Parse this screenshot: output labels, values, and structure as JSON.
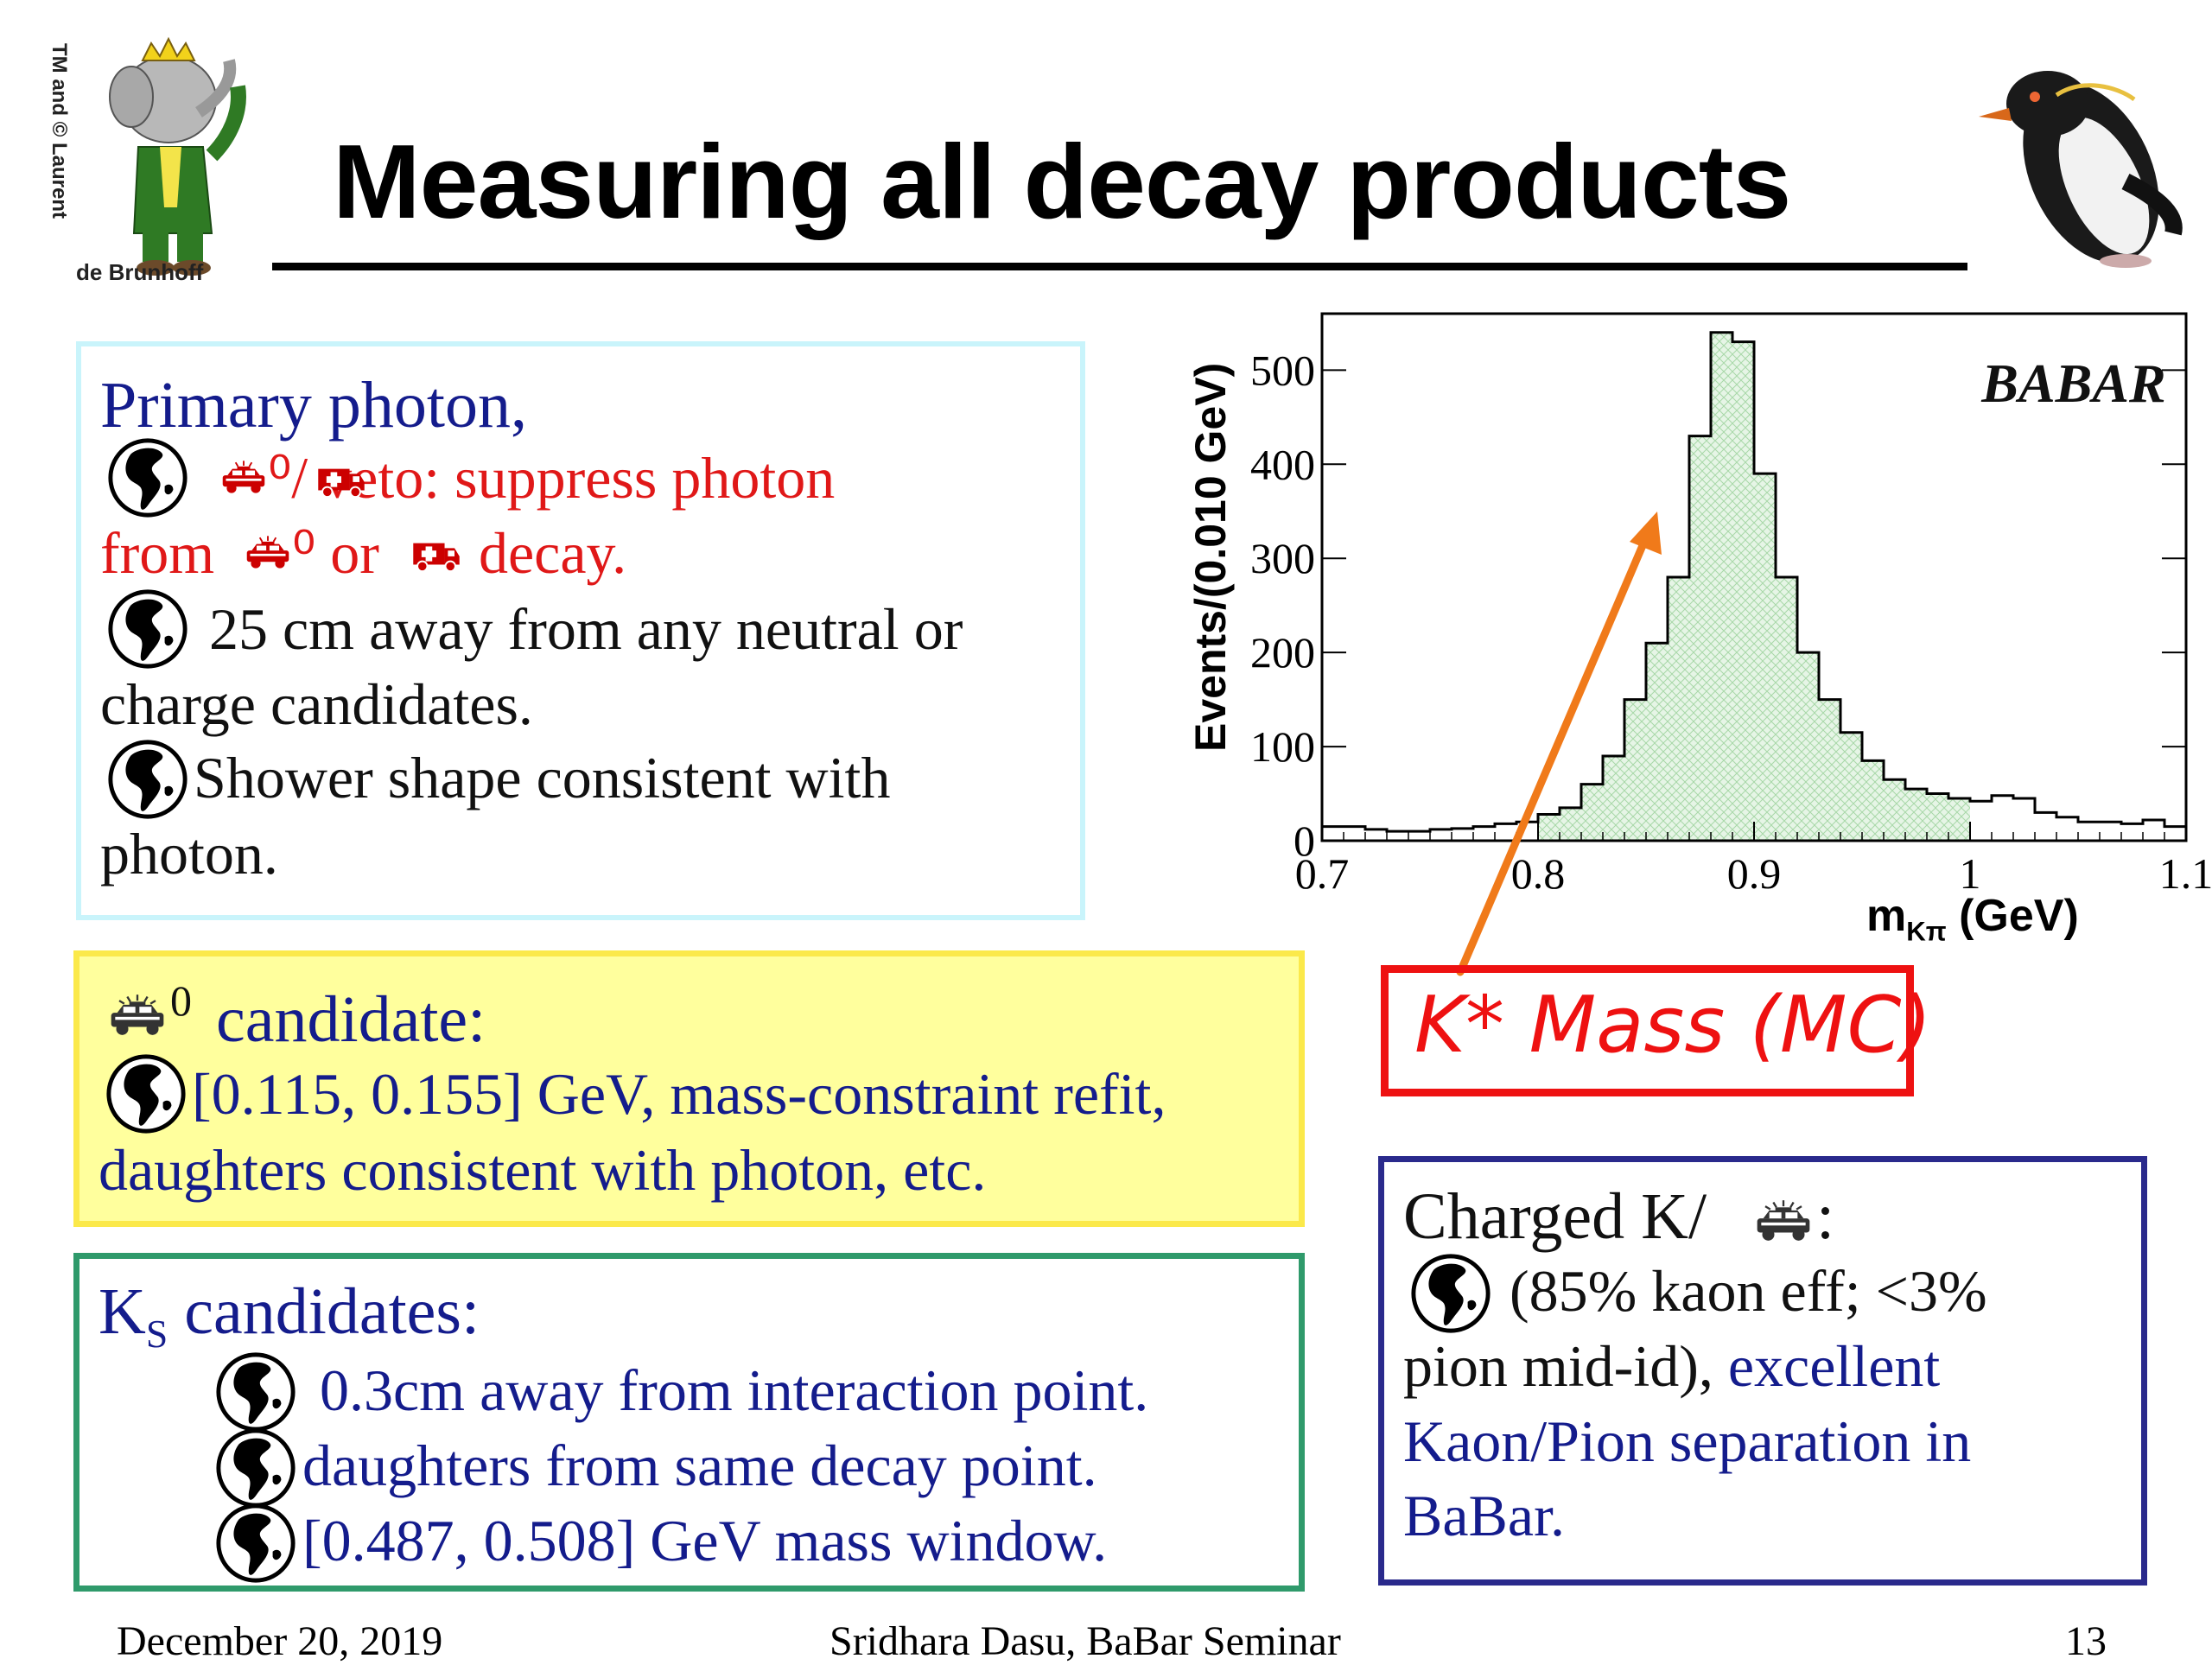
{
  "slide": {
    "title": "Measuring all decay products",
    "logo_text_vertical": "TM and © Laurent",
    "logo_text_bottom": "de Brunhoff"
  },
  "primary_photon": {
    "heading": "Primary photon,",
    "line1": "⁰/   veto: suppress photon",
    "line2a": "from",
    "line2b": "⁰ or",
    "line2c": "decay.",
    "line3": "25 cm away from any neutral or",
    "line4": "charge candidates.",
    "line5": "Shower shape consistent with",
    "line6": "photon."
  },
  "pi0_box": {
    "heading_sup": "0",
    "heading": "candidate:",
    "line1": "[0.115, 0.155] GeV, mass-constraint refit,",
    "line2": "daughters consistent with photon, etc."
  },
  "ks_box": {
    "heading_main": "K",
    "heading_sub": "S",
    "heading_rest": "candidates:",
    "item1": "0.3cm away from interaction point.",
    "item2": "daughters from same decay point.",
    "item3": "[0.487, 0.508] GeV mass window."
  },
  "charged_box": {
    "heading": "Charged K/",
    "heading_colon": ":",
    "line1": "(85% kaon eff; <3%",
    "line2a": "pion mid-id),",
    "line2b": "excellent",
    "line3": "Kaon/Pion separation in",
    "line4": "BaBar."
  },
  "annotation": {
    "label": "K* Mass (MC)",
    "color": "#ee1111",
    "arrow_color": "#f07a1a"
  },
  "chart_data": {
    "type": "histogram",
    "ylabel": "Events/(0.010 GeV)",
    "xlabel_main": "m",
    "xlabel_sub": "Kπ",
    "xlabel_unit": "(GeV)",
    "watermark": "BABAR",
    "xlim": [
      0.7,
      1.1
    ],
    "ylim": [
      0,
      560
    ],
    "x_ticks": [
      "0.7",
      "0.8",
      "0.9",
      "1",
      "1.1"
    ],
    "y_ticks": [
      "0",
      "100",
      "200",
      "300",
      "400",
      "500"
    ],
    "bin_width": 0.01,
    "bin_edges_start": 0.7,
    "values": [
      15,
      15,
      12,
      10,
      10,
      12,
      13,
      15,
      18,
      20,
      28,
      35,
      60,
      90,
      150,
      210,
      280,
      430,
      540,
      530,
      390,
      280,
      200,
      150,
      115,
      85,
      65,
      55,
      50,
      45,
      42,
      48,
      45,
      30,
      25,
      20,
      20,
      18,
      22,
      15
    ],
    "highlight_range": [
      0.8,
      1.0
    ],
    "fill_color": "#dff2df"
  },
  "footer": {
    "date": "December 20, 2019",
    "presenter": "Sridhara Dasu, BaBar Seminar",
    "page": "13"
  },
  "colors": {
    "blue_text": "#141c8c",
    "red_text": "#e01818",
    "cyan_border": "#c9f4fb",
    "yellow_fill": "#ffff9d",
    "green_border": "#2f9a6b",
    "navy_border": "#2a2a8c"
  }
}
